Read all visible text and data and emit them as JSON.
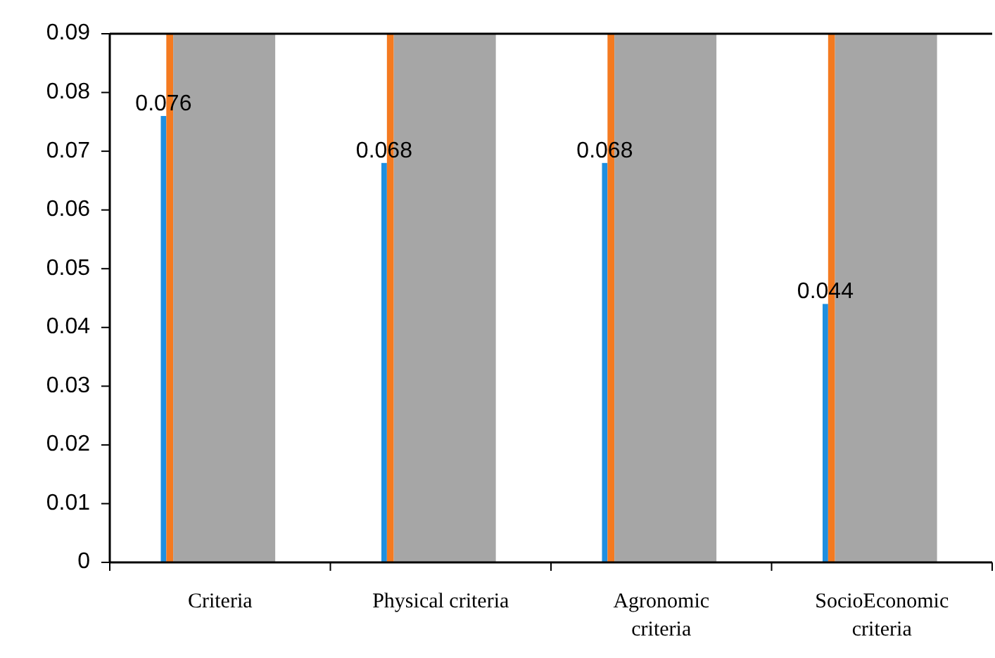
{
  "chart_data": {
    "type": "bar",
    "categories": [
      "Criteria",
      "Physical criteria",
      "Agronomic criteria",
      "SocioEconomic criteria"
    ],
    "series": [
      {
        "color": "#1f8fe0",
        "values": [
          0.076,
          0.068,
          0.068,
          0.044
        ],
        "value_labels": [
          "0.076",
          "0.068",
          "0.068",
          "0.044"
        ]
      },
      {
        "color": "#f47a20",
        "values": [
          0.09,
          0.09,
          0.09,
          0.09
        ]
      },
      {
        "color": "#a6a6a6",
        "values": [
          0.09,
          0.09,
          0.09,
          0.09
        ]
      }
    ],
    "ylim": [
      0,
      0.09
    ],
    "yticks": [
      {
        "value": 0,
        "label": "0"
      },
      {
        "value": 0.01,
        "label": "0.01"
      },
      {
        "value": 0.02,
        "label": "0.02"
      },
      {
        "value": 0.03,
        "label": "0.03"
      },
      {
        "value": 0.04,
        "label": "0.04"
      },
      {
        "value": 0.05,
        "label": "0.05"
      },
      {
        "value": 0.06,
        "label": "0.06"
      },
      {
        "value": 0.07,
        "label": "0.07"
      },
      {
        "value": 0.08,
        "label": "0.08"
      },
      {
        "value": 0.09,
        "label": "0.09"
      }
    ],
    "grid": false
  }
}
